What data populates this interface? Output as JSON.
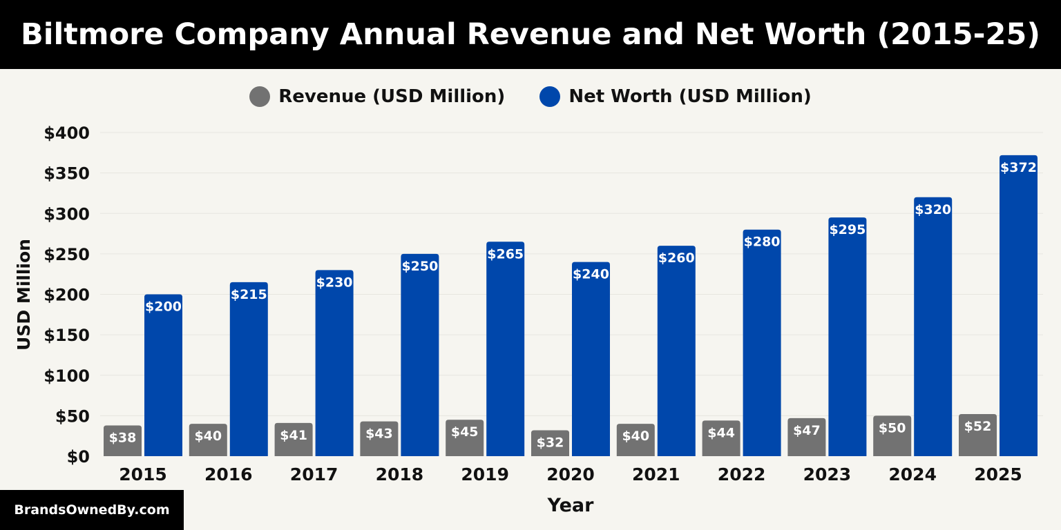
{
  "chart_data": {
    "type": "bar",
    "title": "Biltmore Company Annual Revenue and Net Worth (2015-25)",
    "xlabel": "Year",
    "ylabel": "USD Million",
    "ylim": [
      0,
      400
    ],
    "yticks": [
      "$0",
      "$50",
      "$100",
      "$150",
      "$200",
      "$250",
      "$300",
      "$350",
      "$400"
    ],
    "categories": [
      "2015",
      "2016",
      "2017",
      "2018",
      "2019",
      "2020",
      "2021",
      "2022",
      "2023",
      "2024",
      "2025"
    ],
    "series": [
      {
        "name": "Revenue (USD Million)",
        "color": "#727272",
        "values": [
          38,
          40,
          41,
          43,
          45,
          32,
          40,
          44,
          47,
          50,
          52
        ],
        "labels": [
          "$38",
          "$40",
          "$41",
          "$43",
          "$45",
          "$32",
          "$40",
          "$44",
          "$47",
          "$50",
          "$52"
        ]
      },
      {
        "name": "Net Worth (USD Million)",
        "color": "#0047ab",
        "values": [
          200,
          215,
          230,
          250,
          265,
          240,
          260,
          280,
          295,
          320,
          372
        ],
        "labels": [
          "$200",
          "$215",
          "$230",
          "$250",
          "$265",
          "$240",
          "$260",
          "$280",
          "$295",
          "$320",
          "$372"
        ]
      }
    ],
    "legend": "top-center",
    "grid": true
  },
  "footer": {
    "brand": "BrandsOwnedBy.com"
  }
}
